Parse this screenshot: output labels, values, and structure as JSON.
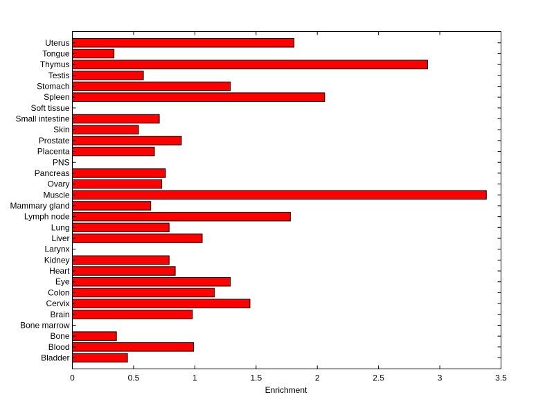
{
  "chart_data": {
    "type": "bar",
    "orientation": "horizontal",
    "categories": [
      "Bladder",
      "Blood",
      "Bone",
      "Bone marrow",
      "Brain",
      "Cervix",
      "Colon",
      "Eye",
      "Heart",
      "Kidney",
      "Larynx",
      "Liver",
      "Lung",
      "Lymph node",
      "Mammary gland",
      "Muscle",
      "Ovary",
      "Pancreas",
      "PNS",
      "Placenta",
      "Prostate",
      "Skin",
      "Small intestine",
      "Soft tissue",
      "Spleen",
      "Stomach",
      "Testis",
      "Thymus",
      "Tongue",
      "Uterus"
    ],
    "values": [
      0.45,
      0.99,
      0.36,
      0,
      0.98,
      1.45,
      1.16,
      1.29,
      0.84,
      0.79,
      0,
      1.06,
      0.79,
      1.78,
      0.64,
      3.38,
      0.73,
      0.76,
      0,
      0.67,
      0.89,
      0.54,
      0.71,
      0,
      2.06,
      1.29,
      0.58,
      2.9,
      0.34,
      1.81
    ],
    "xlabel": "Enrichment",
    "ylabel": "",
    "title": "",
    "xlim": [
      0,
      3.5
    ],
    "xticks": [
      "0",
      "0.5",
      "1",
      "1.5",
      "2",
      "2.5",
      "3",
      "3.5"
    ],
    "bar_color": "#ff0000",
    "grid": false
  }
}
